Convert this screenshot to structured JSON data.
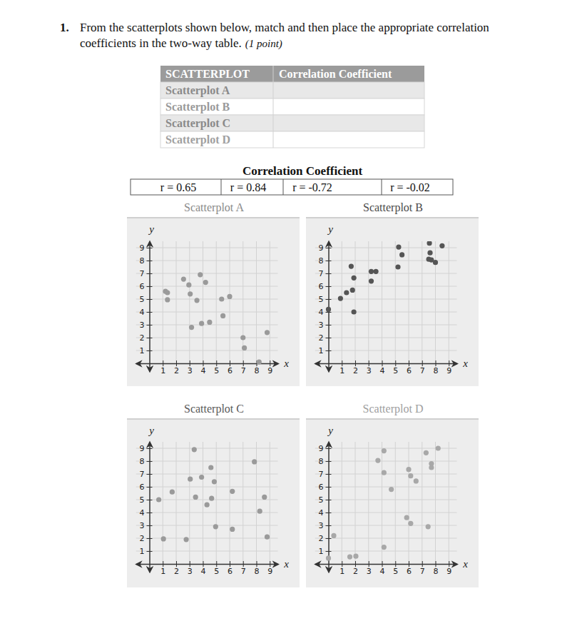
{
  "question": {
    "number": "1.",
    "text_lines": [
      "From the scatterplots shown below, match and then place the appropriate correlation",
      "coefficients in the two-way table."
    ],
    "points": "(1 point)"
  },
  "table": {
    "header": [
      "SCATTERPLOT",
      "Correlation Coefficient"
    ],
    "rows": [
      [
        "Scatterplot A"
      ],
      [
        "Scatterplot B"
      ],
      [
        "Scatterplot C"
      ],
      [
        "Scatterplot D"
      ]
    ]
  },
  "coefficients": {
    "title": "Correlation Coefficient",
    "labels": [
      "r = 0.65",
      "r = 0.84",
      "r = -0.72",
      "r = -0.02"
    ]
  },
  "chart_data": [
    {
      "type": "scatter",
      "title": "Scatterplot A",
      "x_label": "x",
      "y_label": "y",
      "x": [
        1.2,
        1.35,
        1.35,
        2.55,
        2.95,
        3.05,
        3.55,
        3.15,
        3.8,
        4.2,
        3.9,
        4.5,
        5.4,
        6.0,
        5.5,
        7.0,
        7.1,
        8.8,
        8.2
      ],
      "values": [
        5.6,
        5.5,
        4.95,
        6.55,
        6.1,
        5.4,
        4.9,
        2.8,
        6.9,
        6.3,
        3.1,
        3.2,
        5.0,
        5.2,
        3.7,
        2.0,
        1.2,
        2.4,
        0.1
      ],
      "xlim": [
        -1,
        9.6
      ],
      "ylim": [
        -0.6,
        9.5
      ],
      "xticks": [
        1,
        2,
        3,
        4,
        5,
        6,
        7,
        8,
        9
      ],
      "yticks": [
        1,
        2,
        3,
        4,
        5,
        6,
        7,
        8,
        9
      ],
      "grid": true,
      "color": "#9a9a9a"
    },
    {
      "type": "scatter",
      "title": "Scatterplot B",
      "x_label": "x",
      "y_label": "y",
      "x": [
        0,
        0.9,
        1.35,
        1.7,
        1.9,
        1.8,
        1.9,
        3.2,
        3.55,
        3.2,
        5.25,
        5.5,
        5.2,
        7.55,
        7.6,
        7.5,
        7.7,
        8.0,
        8.5
      ],
      "values": [
        4.2,
        5.05,
        5.5,
        7.55,
        6.65,
        5.7,
        4.0,
        7.15,
        7.15,
        6.4,
        9.05,
        8.45,
        7.5,
        9.35,
        8.6,
        8.1,
        8.05,
        7.85,
        9.15
      ],
      "xlim": [
        -1,
        9.6
      ],
      "ylim": [
        -0.6,
        9.5
      ],
      "xticks": [
        1,
        2,
        3,
        4,
        5,
        6,
        7,
        8,
        9
      ],
      "yticks": [
        1,
        2,
        3,
        4,
        5,
        6,
        7,
        8,
        9
      ],
      "grid": true,
      "color": "#555555"
    },
    {
      "type": "scatter",
      "title": "Scatterplot C",
      "x_label": "x",
      "y_label": "y",
      "x": [
        0.7,
        1.05,
        1.7,
        2.75,
        3.35,
        3.05,
        3.45,
        3.9,
        4.3,
        4.6,
        4.85,
        4.65,
        4.95,
        6.2,
        6.2,
        7.85,
        8.25,
        8.6,
        8.8
      ],
      "values": [
        5.0,
        1.95,
        5.6,
        1.9,
        8.9,
        6.6,
        5.2,
        6.75,
        4.6,
        7.5,
        6.4,
        5.1,
        2.9,
        5.65,
        2.7,
        7.95,
        4.1,
        5.2,
        2.1
      ],
      "xlim": [
        -1,
        9.6
      ],
      "ylim": [
        -0.6,
        9.5
      ],
      "xticks": [
        1,
        2,
        3,
        4,
        5,
        6,
        7,
        8,
        9
      ],
      "yticks": [
        1,
        2,
        3,
        4,
        5,
        6,
        7,
        8,
        9
      ],
      "grid": true,
      "color": "#9a9a9a"
    },
    {
      "type": "scatter",
      "title": "Scatterplot D",
      "x_label": "x",
      "y_label": "y",
      "x": [
        0,
        0.4,
        1.6,
        2.05,
        3.7,
        4.15,
        4.15,
        4.15,
        4.7,
        6.0,
        6.15,
        6.55,
        5.85,
        6.15,
        7.3,
        7.7,
        7.7,
        7.45,
        8.2
      ],
      "values": [
        0.45,
        2.2,
        0.55,
        0.6,
        8.05,
        8.8,
        7.1,
        1.3,
        5.8,
        7.35,
        6.85,
        6.45,
        3.6,
        3.15,
        8.65,
        7.8,
        7.5,
        2.9,
        9.0
      ],
      "xlim": [
        -1,
        9.6
      ],
      "ylim": [
        -0.6,
        9.5
      ],
      "xticks": [
        1,
        2,
        3,
        4,
        5,
        6,
        7,
        8,
        9
      ],
      "yticks": [
        1,
        2,
        3,
        4,
        5,
        6,
        7,
        8,
        9
      ],
      "grid": true,
      "color": "#a8a8a8"
    }
  ]
}
